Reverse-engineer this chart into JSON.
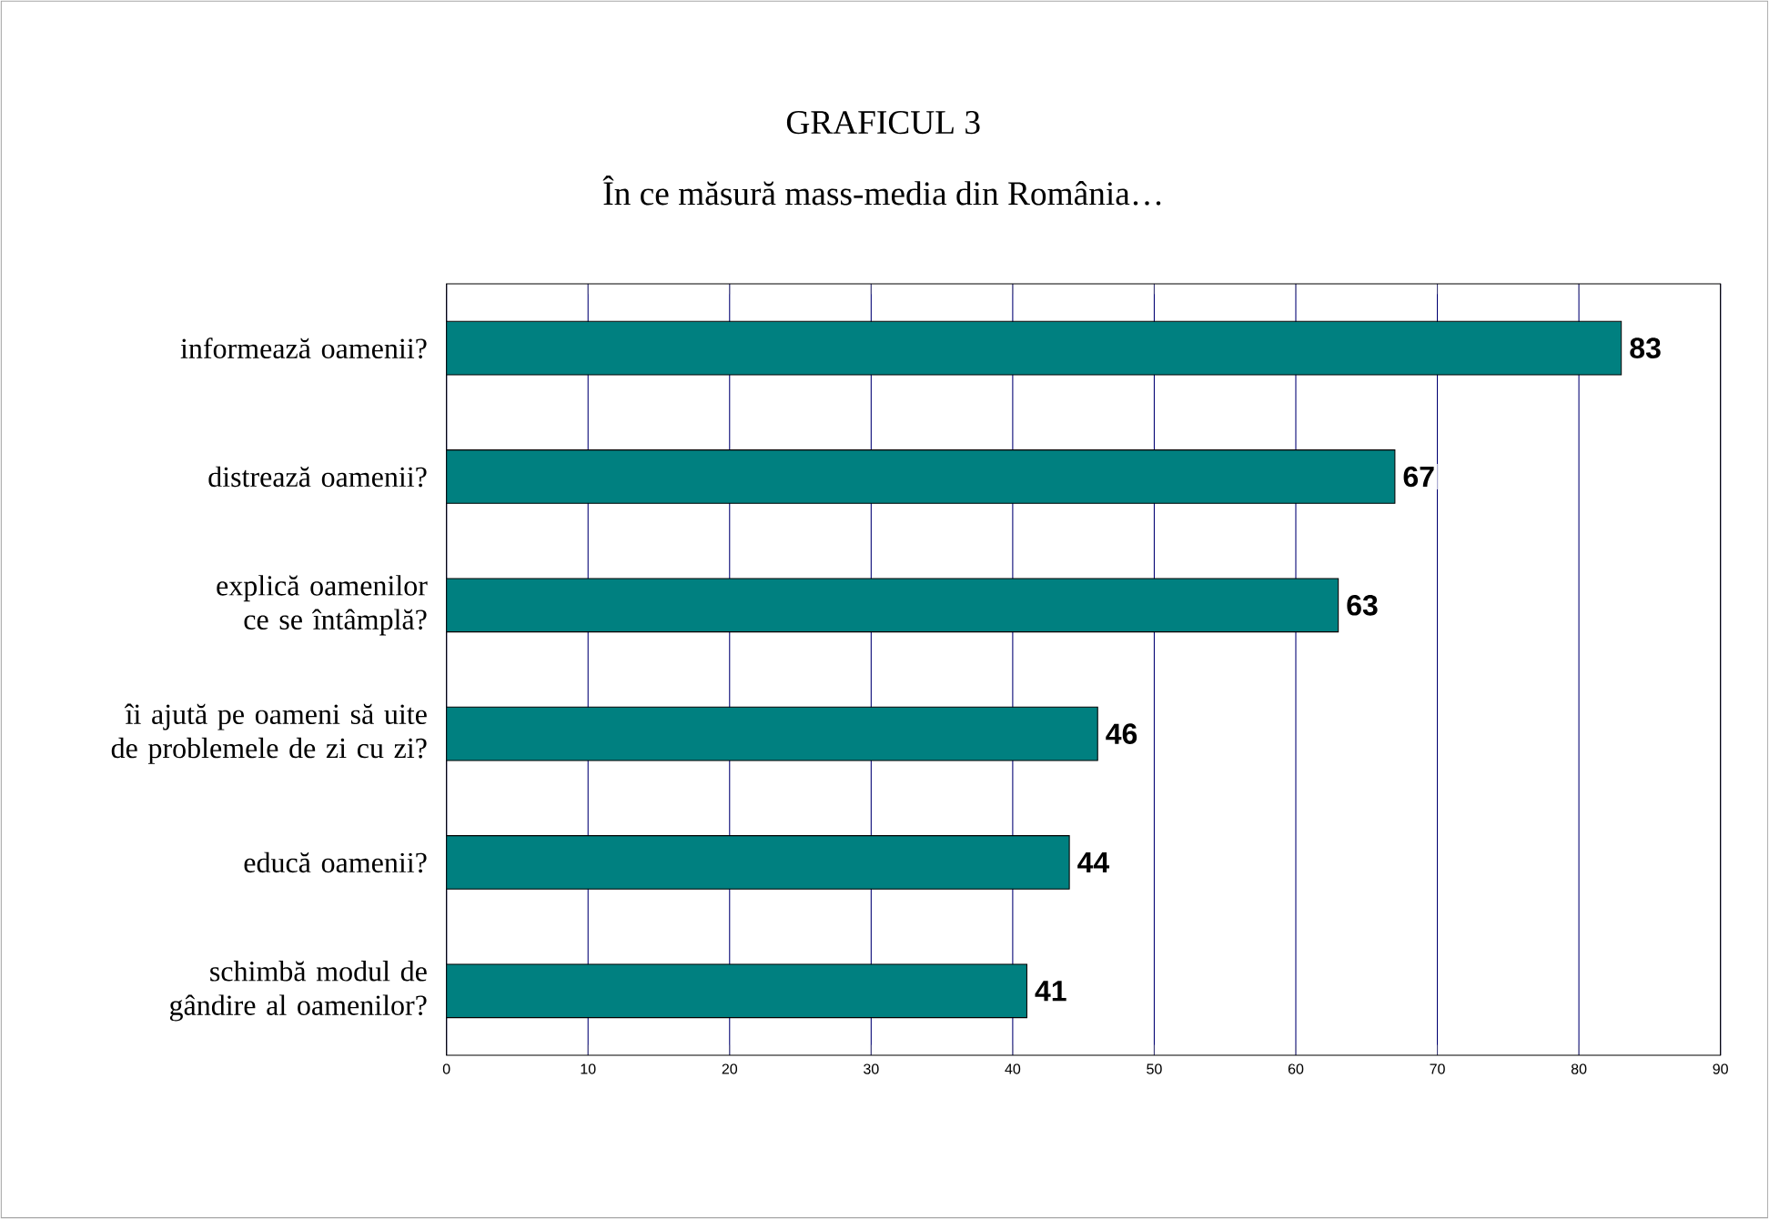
{
  "chart_data": {
    "type": "bar",
    "orientation": "horizontal",
    "title": "GRAFICUL 3",
    "subtitle": "În ce măsură mass-media din România…",
    "categories": [
      "informează oamenii?",
      "distrează oamenii?",
      "explică oamenilor ce se întâmplă?",
      "îi ajută pe oameni să uite de problemele de zi cu zi?",
      "educă oamenii?",
      "schimbă modul de gândire al oamenilor?"
    ],
    "values": [
      83,
      67,
      63,
      46,
      44,
      41
    ],
    "color": "#008080",
    "xlim": [
      0,
      90
    ],
    "xticks": [
      0,
      10,
      20,
      30,
      40,
      50,
      60,
      70,
      80,
      90
    ],
    "grid": "x",
    "data_labels": true
  }
}
